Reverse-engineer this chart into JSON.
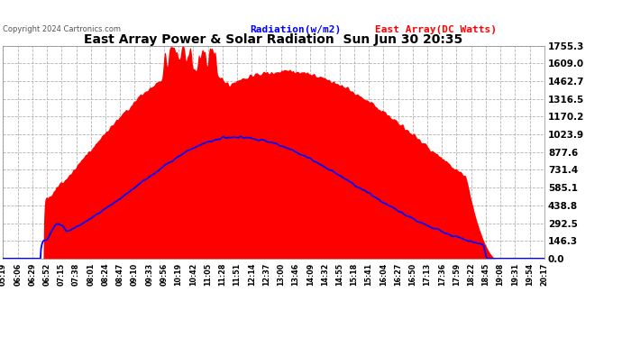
{
  "title": "East Array Power & Solar Radiation  Sun Jun 30 20:35",
  "copyright": "Copyright 2024 Cartronics.com",
  "legend_radiation": "Radiation(w/m2)",
  "legend_east": "East Array(DC Watts)",
  "ymax": 1755.3,
  "ymin": 0.0,
  "ytick_vals": [
    0.0,
    146.3,
    292.5,
    438.8,
    585.1,
    731.4,
    877.6,
    1023.9,
    1170.2,
    1316.5,
    1462.7,
    1609.0,
    1755.3
  ],
  "bg_color": "#ffffff",
  "grid_color": "#aaaaaa",
  "fill_color": "#ff0000",
  "line_color": "#0000ff",
  "radiation_color": "#0000ff",
  "east_color": "#ff0000",
  "copyright_color": "#555555",
  "xtick_labels": [
    "05:19",
    "06:06",
    "06:29",
    "06:52",
    "07:15",
    "07:38",
    "08:01",
    "08:24",
    "08:47",
    "09:10",
    "09:33",
    "09:56",
    "10:19",
    "10:42",
    "11:05",
    "11:28",
    "11:51",
    "12:14",
    "12:37",
    "13:00",
    "13:46",
    "14:09",
    "14:32",
    "14:55",
    "15:18",
    "15:41",
    "16:04",
    "16:27",
    "16:50",
    "17:13",
    "17:36",
    "17:59",
    "18:22",
    "18:45",
    "19:08",
    "19:31",
    "19:54",
    "20:17"
  ]
}
